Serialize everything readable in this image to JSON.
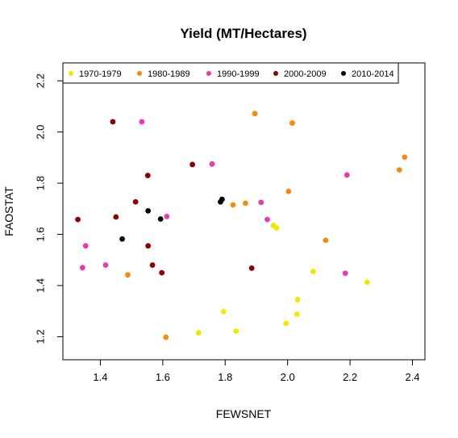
{
  "chart_data": {
    "type": "scatter",
    "title": "Yield (MT/Hectares)",
    "xlabel": "FEWSNET",
    "ylabel": "FAOSTAT",
    "xlim": [
      1.28,
      2.44
    ],
    "ylim": [
      1.11,
      2.27
    ],
    "xticks": [
      "1.4",
      "1.6",
      "1.8",
      "2.0",
      "2.2",
      "2.4"
    ],
    "yticks": [
      "1.2",
      "1.4",
      "1.6",
      "1.8",
      "2.0",
      "2.2"
    ],
    "grid": false,
    "legend_position": "top",
    "series": [
      {
        "name": "1970-1979",
        "color": "#f0e800",
        "points": [
          [
            1.715,
            1.215
          ],
          [
            1.795,
            1.298
          ],
          [
            1.835,
            1.222
          ],
          [
            1.955,
            1.635
          ],
          [
            1.965,
            1.625
          ],
          [
            1.995,
            1.252
          ],
          [
            2.03,
            1.288
          ],
          [
            2.032,
            1.345
          ],
          [
            2.082,
            1.455
          ],
          [
            2.255,
            1.413
          ]
        ]
      },
      {
        "name": "1980-1989",
        "color": "#f08c10",
        "points": [
          [
            1.488,
            1.442
          ],
          [
            1.61,
            1.198
          ],
          [
            1.825,
            1.715
          ],
          [
            1.865,
            1.722
          ],
          [
            1.895,
            2.072
          ],
          [
            2.003,
            1.768
          ],
          [
            2.015,
            2.035
          ],
          [
            2.122,
            1.577
          ],
          [
            2.358,
            1.852
          ],
          [
            2.375,
            1.902
          ]
        ]
      },
      {
        "name": "1990-1999",
        "color": "#e83ab0",
        "points": [
          [
            1.343,
            1.47
          ],
          [
            1.353,
            1.555
          ],
          [
            1.417,
            1.48
          ],
          [
            1.533,
            2.04
          ],
          [
            1.613,
            1.67
          ],
          [
            1.758,
            1.875
          ],
          [
            1.915,
            1.725
          ],
          [
            1.935,
            1.658
          ],
          [
            2.185,
            1.448
          ],
          [
            2.19,
            1.832
          ]
        ]
      },
      {
        "name": "2000-2009",
        "color": "#8b0000",
        "points": [
          [
            1.328,
            1.658
          ],
          [
            1.44,
            2.04
          ],
          [
            1.45,
            1.668
          ],
          [
            1.513,
            1.727
          ],
          [
            1.552,
            1.83
          ],
          [
            1.553,
            1.555
          ],
          [
            1.567,
            1.48
          ],
          [
            1.597,
            1.45
          ],
          [
            1.695,
            1.873
          ],
          [
            1.885,
            1.468
          ]
        ]
      },
      {
        "name": "2010-2014",
        "color": "#000000",
        "points": [
          [
            1.47,
            1.582
          ],
          [
            1.553,
            1.692
          ],
          [
            1.593,
            1.66
          ],
          [
            1.785,
            1.727
          ],
          [
            1.79,
            1.737
          ]
        ]
      }
    ]
  }
}
